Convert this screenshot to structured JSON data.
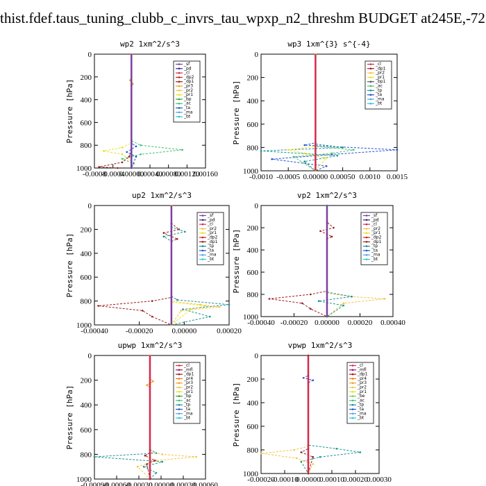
{
  "page_title": "thist.fdef.taus_tuning_clubb_c_invrs_tau_wpxp_n2_threshm  BUDGET at245E,-72",
  "colors": {
    "_sf": "#7b3fa0",
    "_pd": "#2a2a8a",
    "_cl": "#d8274a",
    "_dp2": "#c81e1e",
    "_dp1": "#9a1a1a",
    "_pr3": "#f0a020",
    "_pr2": "#f5c242",
    "_pr1": "#e8e020",
    "_bp": "#30a030",
    "_ac": "#40c070",
    "_tp": "#1a9090",
    "_ta": "#2050d0",
    "_ma": "#50a0e0",
    "_bt": "#20c8e0",
    "_mfl": "#a01060",
    "_pr4": "#ff7010",
    "_be": "#70d050"
  },
  "chart_data": [
    {
      "type": "line",
      "title": "wp2   1xm^2/s^3",
      "ylabel": "Pressure [hPa]",
      "ylim": [
        1000,
        0
      ],
      "xlim": [
        -0.0008,
        0.0016
      ],
      "xticks": [
        "-0.0008",
        "-0.0004",
        "0.00000",
        "0.00040",
        "0.00080",
        "0.00120",
        "0.00160"
      ],
      "yticks": [
        "0",
        "200",
        "400",
        "600",
        "800",
        "1000"
      ],
      "legend": [
        "_sf",
        "_pd",
        "_cl",
        "_dp2",
        "_dp1",
        "_pr3",
        "_pr2",
        "_pr1",
        "_bp",
        "_ac",
        "_ta",
        "_ma",
        "_bt"
      ],
      "series": [
        {
          "name": "_ac",
          "x": [
            0,
            0,
            0.0002,
            0.0011,
            0.0002,
            -0.0002,
            5e-05,
            0
          ],
          "y": [
            0,
            760,
            800,
            840,
            880,
            920,
            960,
            1000
          ]
        },
        {
          "name": "_pr1",
          "x": [
            0,
            0,
            -0.0002,
            -0.0006,
            -0.0002,
            0,
            0
          ],
          "y": [
            0,
            780,
            820,
            850,
            880,
            940,
            1000
          ]
        },
        {
          "name": "_ta",
          "x": [
            0,
            0,
            0.0001,
            -0.0001,
            0.0001,
            0
          ],
          "y": [
            0,
            780,
            810,
            860,
            900,
            1000
          ]
        },
        {
          "name": "_dp1",
          "x": [
            0,
            0,
            -5e-05,
            -0.0002,
            -0.0007,
            -0.0003
          ],
          "y": [
            0,
            850,
            900,
            950,
            990,
            1000
          ]
        },
        {
          "name": "_pr3",
          "x": [
            0,
            0,
            -3e-05,
            3e-05,
            0
          ],
          "y": [
            0,
            200,
            230,
            260,
            300
          ]
        },
        {
          "name": "_sf",
          "x": [
            0,
            0
          ],
          "y": [
            0,
            1000
          ]
        }
      ]
    },
    {
      "type": "line",
      "title": "wp3   1xm^{3} s^{-4}",
      "ylabel": "Pressure [hPa]",
      "ylim": [
        1000,
        0
      ],
      "xlim": [
        -0.001,
        0.0015
      ],
      "xticks": [
        "-0.0010",
        "-0.0005",
        "0.00000",
        "0.00050",
        "0.0010",
        "0.0015"
      ],
      "yticks": [
        "0",
        "200",
        "400",
        "600",
        "800",
        "1000"
      ],
      "legend": [
        "_cl",
        "_dp1",
        "_pr2",
        "_pr1",
        "_bp1",
        "_ac",
        "_tp",
        "_ta",
        "_ma",
        "_bt"
      ],
      "series": [
        {
          "name": "_ta",
          "x": [
            0,
            0,
            -0.0002,
            0.0015,
            0.0003,
            -0.0008,
            0.0002,
            0
          ],
          "y": [
            0,
            760,
            780,
            820,
            860,
            900,
            960,
            1000
          ]
        },
        {
          "name": "_tp",
          "x": [
            0,
            0,
            0.0005,
            -0.001,
            0.0004,
            -0.0002,
            0
          ],
          "y": [
            0,
            770,
            800,
            830,
            870,
            920,
            1000
          ]
        },
        {
          "name": "_ac",
          "x": [
            0,
            0,
            0.0007,
            0.0003,
            -0.0004,
            0
          ],
          "y": [
            0,
            790,
            820,
            850,
            880,
            1000
          ]
        },
        {
          "name": "_pr1",
          "x": [
            0,
            0,
            -0.0005,
            -0.0002,
            0.0002,
            0
          ],
          "y": [
            0,
            790,
            820,
            850,
            890,
            1000
          ]
        },
        {
          "name": "_cl",
          "x": [
            0,
            0
          ],
          "y": [
            0,
            1000
          ]
        }
      ]
    },
    {
      "type": "line",
      "title": "up2   1xm^2/s^3",
      "ylabel": "Pressure [hPa]",
      "ylim": [
        1000,
        0
      ],
      "xlim": [
        -0.0004,
        0.0003
      ],
      "xticks": [
        "-0.00040",
        "-0.00020",
        "0.00000",
        "0.00020"
      ],
      "yticks": [
        "0",
        "200",
        "400",
        "600",
        "800",
        "1000"
      ],
      "legend": [
        "_sf",
        "_pd",
        "_cl",
        "_pr2",
        "_pr1",
        "_dp2",
        "_dp1",
        "_tp",
        "_ta",
        "_ma",
        "_bt"
      ],
      "series": [
        {
          "name": "_dp1",
          "x": [
            0,
            0,
            4e-05,
            -4e-05,
            3e-05,
            0,
            0,
            -0.0001,
            -0.00038,
            -0.00015,
            -0.0001,
            0
          ],
          "y": [
            0,
            150,
            200,
            230,
            280,
            300,
            770,
            800,
            840,
            880,
            930,
            1000
          ]
        },
        {
          "name": "_tp",
          "x": [
            0,
            0,
            7e-05,
            -4e-05,
            0,
            0,
            3e-05,
            0.0003,
            6e-05,
            0.0002,
            0
          ],
          "y": [
            0,
            180,
            220,
            260,
            300,
            760,
            790,
            830,
            870,
            930,
            1000
          ]
        },
        {
          "name": "_pr2",
          "x": [
            0,
            0,
            0.00015,
            0.00025,
            5e-05,
            0
          ],
          "y": [
            0,
            800,
            830,
            850,
            880,
            1000
          ]
        },
        {
          "name": "_pr1",
          "x": [
            0,
            0,
            0.00018,
            0.0001,
            0
          ],
          "y": [
            0,
            810,
            840,
            870,
            1000
          ]
        },
        {
          "name": "_sf",
          "x": [
            0,
            0
          ],
          "y": [
            0,
            1000
          ]
        }
      ]
    },
    {
      "type": "line",
      "title": "vp2   1xm^2/s^3",
      "ylabel": "Pressure [hPa]",
      "ylim": [
        1000,
        0
      ],
      "xlim": [
        -0.0004,
        0.0004
      ],
      "xticks": [
        "-0.00040",
        "-0.00020",
        "0.00000",
        "0.00020",
        "0.00040"
      ],
      "yticks": [
        "0",
        "200",
        "400",
        "600",
        "800",
        "1000"
      ],
      "legend": [
        "_sf",
        "_pd",
        "_cl",
        "_pr2",
        "_pr1",
        "_dp2",
        "_dp1",
        "_tp",
        "_ta",
        "_ma",
        "_bt"
      ],
      "series": [
        {
          "name": "_dp1",
          "x": [
            0,
            0,
            4e-05,
            -4e-05,
            3e-05,
            0,
            0,
            -0.0001,
            -0.00035,
            -0.00015,
            -0.0001,
            0
          ],
          "y": [
            0,
            150,
            200,
            230,
            280,
            300,
            770,
            800,
            840,
            880,
            930,
            1000
          ]
        },
        {
          "name": "_pr2",
          "x": [
            0,
            0,
            0.00015,
            0.00035,
            0.0001,
            0
          ],
          "y": [
            0,
            790,
            820,
            840,
            880,
            1000
          ]
        },
        {
          "name": "_tp",
          "x": [
            0,
            0,
            0.00015,
            -5e-05,
            0.0001,
            0
          ],
          "y": [
            0,
            780,
            820,
            860,
            900,
            1000
          ]
        },
        {
          "name": "_sf",
          "x": [
            0,
            0
          ],
          "y": [
            0,
            1000
          ]
        }
      ]
    },
    {
      "type": "line",
      "title": "upwp   1xm^2/s^3",
      "ylabel": "Pressure [hPa]",
      "ylim": [
        1000,
        0
      ],
      "xlim": [
        -0.0009,
        0.0009
      ],
      "xticks": [
        "-0.00090",
        "-0.00060",
        "-0.00030",
        "0.00000",
        "0.00030",
        "0.00060"
      ],
      "yticks": [
        "0",
        "200",
        "400",
        "600",
        "800",
        "1000"
      ],
      "legend": [
        "_cl",
        "_mfl",
        "_dp1",
        "_pr4",
        "_pr3",
        "_pr2",
        "_pr1",
        "_bp",
        "_ac",
        "_tp",
        "_ta",
        "_ma",
        "_bt"
      ],
      "series": [
        {
          "name": "_tp",
          "x": [
            0,
            0,
            0.0001,
            -0.0009,
            0.0002,
            -0.0001,
            0.0001,
            0
          ],
          "y": [
            0,
            760,
            790,
            820,
            860,
            900,
            950,
            1000
          ]
        },
        {
          "name": "_pr2",
          "x": [
            0,
            0,
            0.0002,
            0.00075,
            0.0001,
            -0.0002,
            0
          ],
          "y": [
            0,
            780,
            800,
            820,
            850,
            900,
            1000
          ]
        },
        {
          "name": "_dp1",
          "x": [
            0,
            0,
            -8e-05,
            8e-05,
            -5e-05,
            0
          ],
          "y": [
            0,
            790,
            810,
            850,
            880,
            1000
          ]
        },
        {
          "name": "_pr3",
          "x": [
            0,
            0,
            5e-05,
            -5e-05,
            0
          ],
          "y": [
            0,
            180,
            210,
            240,
            260
          ]
        },
        {
          "name": "_cl",
          "x": [
            0,
            0
          ],
          "y": [
            0,
            1000
          ]
        }
      ]
    },
    {
      "type": "line",
      "title": "vpwp   1xm^2/s^3",
      "ylabel": "Pressure [hPa]",
      "ylim": [
        1000,
        0
      ],
      "xlim": [
        -0.0002,
        0.0003
      ],
      "xticks": [
        "-0.00020",
        "-0.00010",
        "0.00000",
        "0.00010",
        "0.00020",
        "0.00030"
      ],
      "yticks": [
        "0",
        "200",
        "400",
        "600",
        "800",
        "1000"
      ],
      "legend": [
        "_cl",
        "_mfl",
        "_dp1",
        "_pr4",
        "_pr3",
        "_pr2",
        "_pr1",
        "_be",
        "_ac",
        "_tp",
        "_ta",
        "_ma",
        "_bt"
      ],
      "series": [
        {
          "name": "_tp",
          "x": [
            0,
            0,
            0.00012,
            0.00022,
            5e-05,
            -3e-05,
            0
          ],
          "y": [
            0,
            760,
            790,
            820,
            860,
            900,
            1000
          ]
        },
        {
          "name": "_pr2",
          "x": [
            0,
            0,
            -6e-05,
            -0.0002,
            -5e-05,
            2e-05,
            0
          ],
          "y": [
            0,
            770,
            800,
            830,
            870,
            920,
            1000
          ]
        },
        {
          "name": "_ta",
          "x": [
            0,
            0,
            -2e-05,
            2e-05,
            0
          ],
          "y": [
            0,
            170,
            190,
            210,
            230
          ]
        },
        {
          "name": "_dp1",
          "x": [
            0,
            0,
            -3e-05,
            2e-05,
            0
          ],
          "y": [
            0,
            790,
            820,
            860,
            1000
          ]
        },
        {
          "name": "_cl",
          "x": [
            0,
            0
          ],
          "y": [
            0,
            1000
          ]
        }
      ]
    }
  ]
}
